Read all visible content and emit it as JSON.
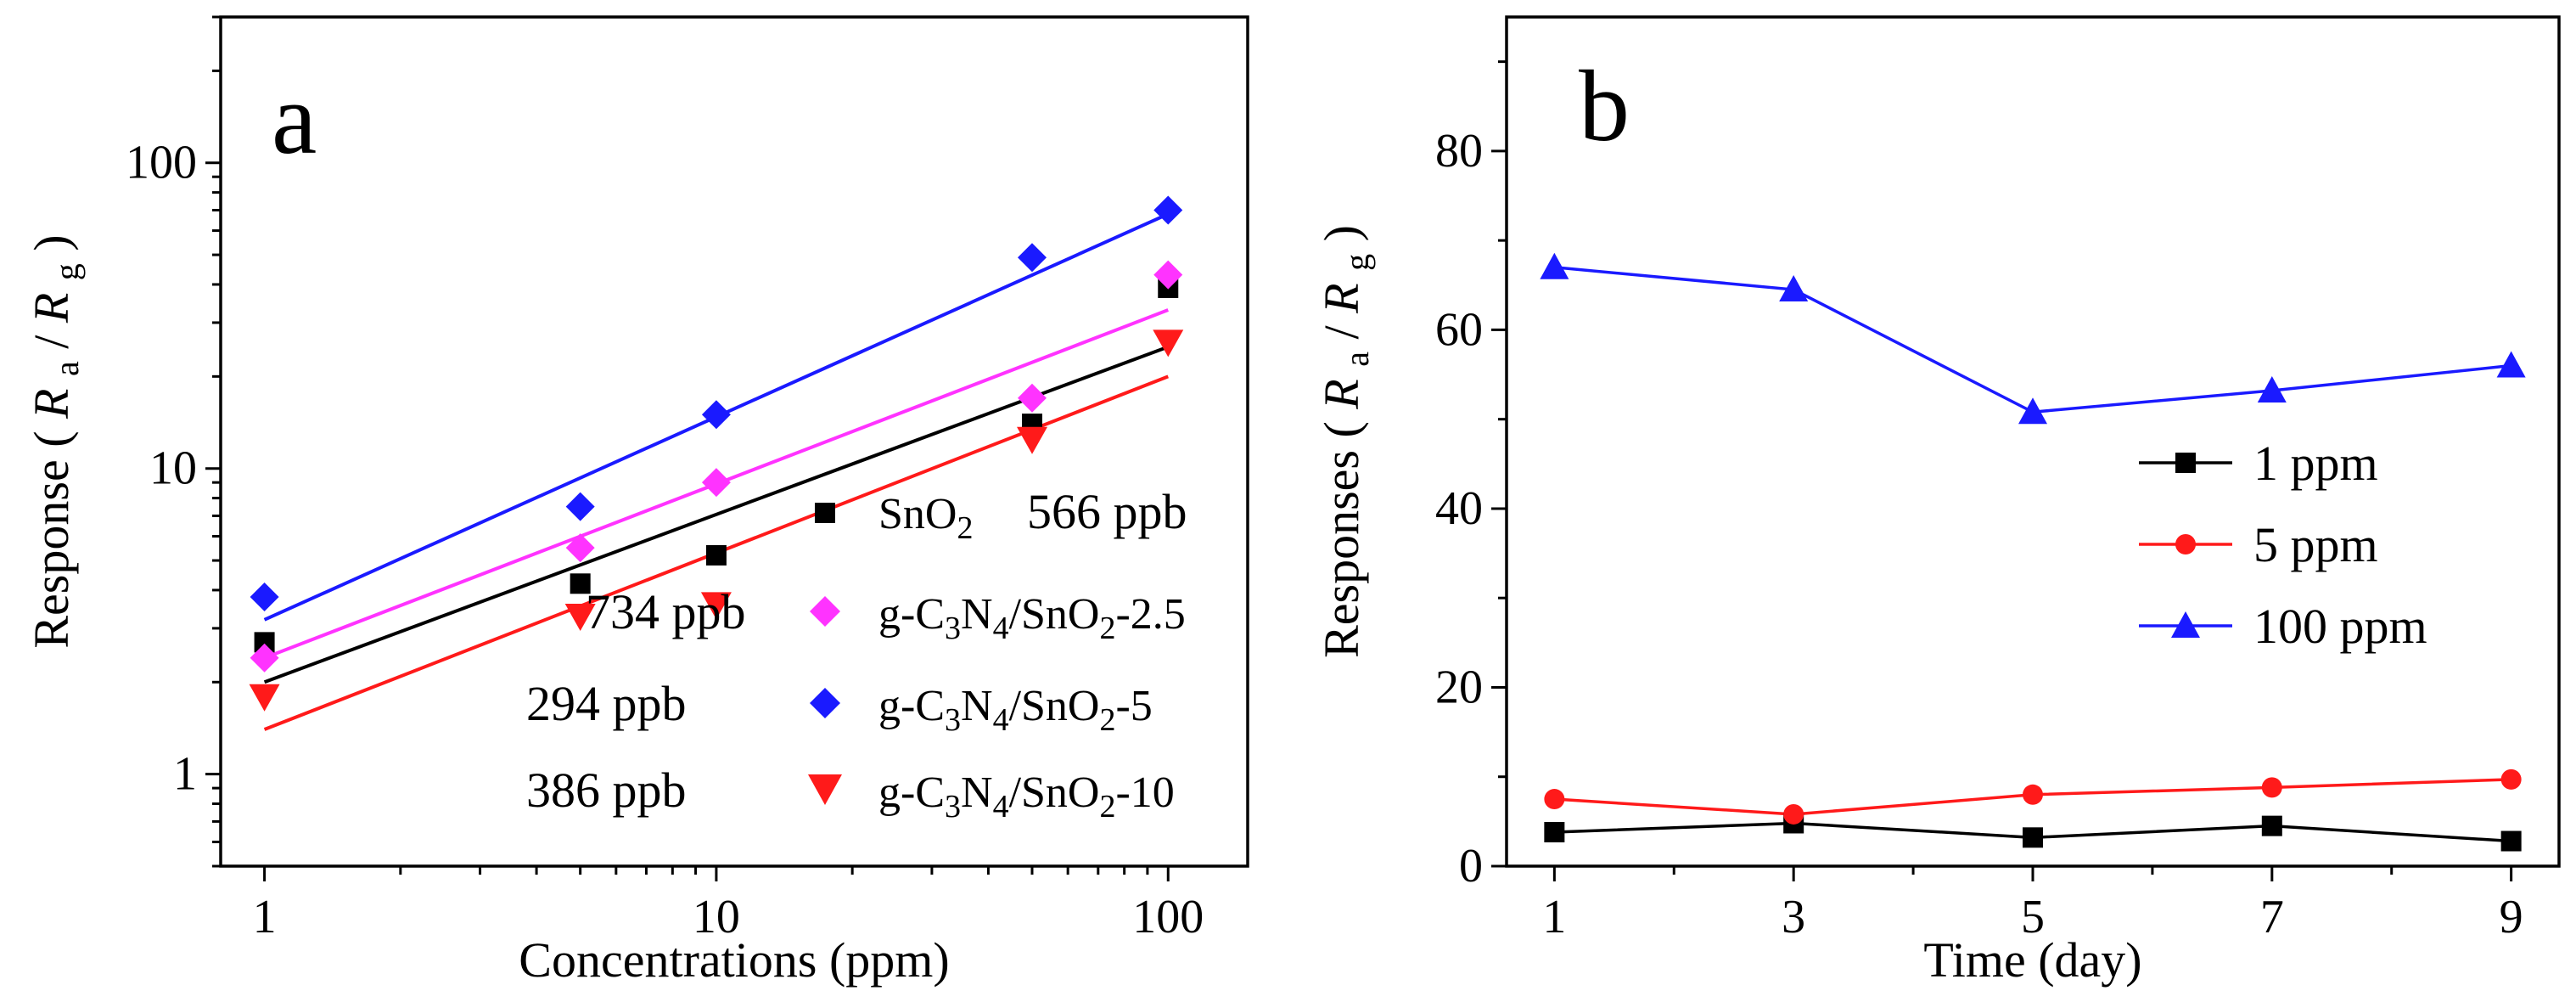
{
  "chart_data": [
    {
      "id": "a",
      "type": "scatter",
      "panel_label": "a",
      "xlabel": "Concentrations (ppm)",
      "ylabel_prefix": "Response",
      "ylabel_R": "R",
      "ylabel_sub_a": "a",
      "ylabel_sub_g": "g",
      "xscale": "log",
      "yscale": "log",
      "xlim": [
        0.8,
        150
      ],
      "ylim": [
        0.5,
        300
      ],
      "xticks": [
        {
          "v": 1,
          "label": "1"
        },
        {
          "v": 10,
          "label": "10"
        },
        {
          "v": 100,
          "label": "100"
        }
      ],
      "yticks": [
        {
          "v": 1,
          "label": "1"
        },
        {
          "v": 10,
          "label": "10"
        },
        {
          "v": 100,
          "label": "100"
        }
      ],
      "legend_position": "bottom-right",
      "series": [
        {
          "key": "sno2",
          "name": "SnO2",
          "label_main": "SnO",
          "label_sub": "2",
          "detection_limit": "566 ppb",
          "color": "#000000",
          "marker": "square",
          "x": [
            1,
            5,
            10,
            50,
            100
          ],
          "y": [
            2.7,
            4.2,
            5.2,
            14,
            39
          ],
          "fit": [
            [
              1,
              2.0
            ],
            [
              100,
              25
            ]
          ]
        },
        {
          "key": "cn25",
          "name": "g-C3N4/SnO2-2.5",
          "label_main": "g-C",
          "label_sub": "3",
          "label_mid": "N",
          "label_sub2": "4",
          "label_mid2": "/SnO",
          "label_sub3": "2",
          "label_tail": "-2.5",
          "detection_limit": "734 ppb",
          "color": "#ff33ff",
          "marker": "diamond",
          "x": [
            1,
            5,
            10,
            50,
            100
          ],
          "y": [
            2.4,
            5.5,
            9,
            17,
            43
          ],
          "fit": [
            [
              1,
              2.4
            ],
            [
              100,
              33
            ]
          ]
        },
        {
          "key": "cn5",
          "name": "g-C3N4/SnO2-5",
          "label_main": "g-C",
          "label_sub": "3",
          "label_mid": "N",
          "label_sub2": "4",
          "label_mid2": "/SnO",
          "label_sub3": "2",
          "label_tail": "-5",
          "detection_limit": "294 ppb",
          "color": "#1a1aff",
          "marker": "diamond",
          "x": [
            1,
            5,
            10,
            50,
            100
          ],
          "y": [
            3.8,
            7.5,
            15,
            49,
            70
          ],
          "fit": [
            [
              1,
              3.2
            ],
            [
              100,
              68
            ]
          ]
        },
        {
          "key": "cn10",
          "name": "g-C3N4/SnO2-10",
          "label_main": "g-C",
          "label_sub": "3",
          "label_mid": "N",
          "label_sub2": "4",
          "label_mid2": "/SnO",
          "label_sub3": "2",
          "label_tail": "-10",
          "detection_limit": "386 ppb",
          "color": "#ff1a1a",
          "marker": "triangle-down",
          "x": [
            1,
            5,
            10,
            50,
            100
          ],
          "y": [
            1.8,
            3.3,
            3.6,
            12.5,
            26
          ],
          "fit": [
            [
              1,
              1.4
            ],
            [
              100,
              20
            ]
          ]
        }
      ]
    },
    {
      "id": "b",
      "type": "line",
      "panel_label": "b",
      "xlabel": "Time (day)",
      "ylabel_prefix": "Responses",
      "ylabel_R": "R",
      "ylabel_sub_a": "a",
      "ylabel_sub_g": "g",
      "xlim": [
        0.6,
        9.4
      ],
      "ylim": [
        0,
        95
      ],
      "xticks": [
        {
          "v": 1,
          "label": "1"
        },
        {
          "v": 3,
          "label": "3"
        },
        {
          "v": 5,
          "label": "5"
        },
        {
          "v": 7,
          "label": "7"
        },
        {
          "v": 9,
          "label": "9"
        }
      ],
      "yticks": [
        {
          "v": 0,
          "label": "0"
        },
        {
          "v": 20,
          "label": "20"
        },
        {
          "v": 40,
          "label": "40"
        },
        {
          "v": 60,
          "label": "60"
        },
        {
          "v": 80,
          "label": "80"
        }
      ],
      "legend_position": "center-right",
      "x": [
        1,
        3,
        5,
        7,
        9
      ],
      "series": [
        {
          "key": "p1",
          "name": "1 ppm",
          "color": "#000000",
          "marker": "square",
          "values": [
            3.8,
            4.8,
            3.2,
            4.5,
            2.8
          ]
        },
        {
          "key": "p5",
          "name": "5 ppm",
          "color": "#ff1a1a",
          "marker": "circle",
          "values": [
            7.5,
            5.8,
            8.0,
            8.8,
            9.7
          ]
        },
        {
          "key": "p100",
          "name": "100 ppm",
          "color": "#1a1aff",
          "marker": "triangle-up",
          "values": [
            67,
            64.5,
            50.8,
            53.2,
            56
          ]
        }
      ]
    }
  ]
}
